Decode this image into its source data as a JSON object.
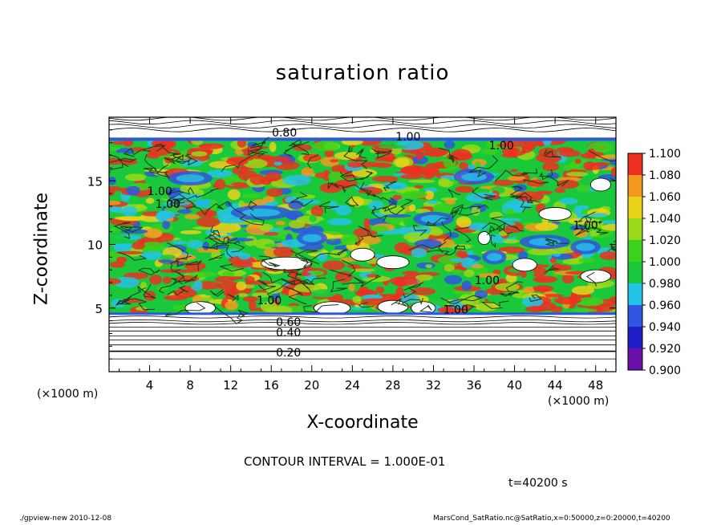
{
  "chart_data": {
    "type": "heatmap",
    "title": "saturation ratio",
    "xlabel": "X-coordinate",
    "ylabel": "Z-coordinate",
    "x_unit_note": "(×1000 m)",
    "y_unit_note": "(×1000 m)",
    "xlim": [
      0,
      50
    ],
    "ylim": [
      0,
      20
    ],
    "x_ticks": [
      4,
      8,
      12,
      16,
      20,
      24,
      28,
      32,
      36,
      40,
      44,
      48
    ],
    "y_ticks": [
      5,
      10,
      15
    ],
    "colorbar": {
      "levels": [
        0.9,
        0.92,
        0.94,
        0.96,
        0.98,
        1.0,
        1.02,
        1.04,
        1.06,
        1.08,
        1.1
      ],
      "labels": [
        "0.900",
        "0.920",
        "0.940",
        "0.960",
        "0.980",
        "1.000",
        "1.020",
        "1.040",
        "1.060",
        "1.080",
        "1.100"
      ],
      "colors": [
        "#6a0fa8",
        "#1e1ec8",
        "#2f56e0",
        "#23c4e8",
        "#19c93b",
        "#3bd21d",
        "#9ad81a",
        "#ead21a",
        "#f39a1e",
        "#ec3020",
        "#f5a0a0"
      ]
    },
    "contour_labels": [
      {
        "text": "0.80",
        "x": 17.3,
        "z": 18.8
      },
      {
        "text": "1.00",
        "x": 29.5,
        "z": 18.5
      },
      {
        "text": "1.00",
        "x": 38.7,
        "z": 17.8
      },
      {
        "text": "1.00",
        "x": 5.0,
        "z": 14.2
      },
      {
        "text": "1.00",
        "x": 5.8,
        "z": 13.2
      },
      {
        "text": "1.00",
        "x": 47.0,
        "z": 11.5
      },
      {
        "text": "1.00",
        "x": 37.3,
        "z": 7.2
      },
      {
        "text": "1.00",
        "x": 15.8,
        "z": 5.6
      },
      {
        "text": "1.00",
        "x": 34.2,
        "z": 4.9
      },
      {
        "text": "0.60",
        "x": 17.7,
        "z": 3.9
      },
      {
        "text": "0.40",
        "x": 17.7,
        "z": 3.1
      },
      {
        "text": "0.20",
        "x": 17.7,
        "z": 1.5
      }
    ],
    "contour_interval": "CONTOUR INTERVAL = 1.000E-01",
    "time_label": "t=40200 s"
  },
  "footer": {
    "left": "./gpview-new  2010-12-08",
    "right": "MarsCond_SatRatio.nc@SatRatio,x=0:50000,z=0:20000,t=40200"
  }
}
